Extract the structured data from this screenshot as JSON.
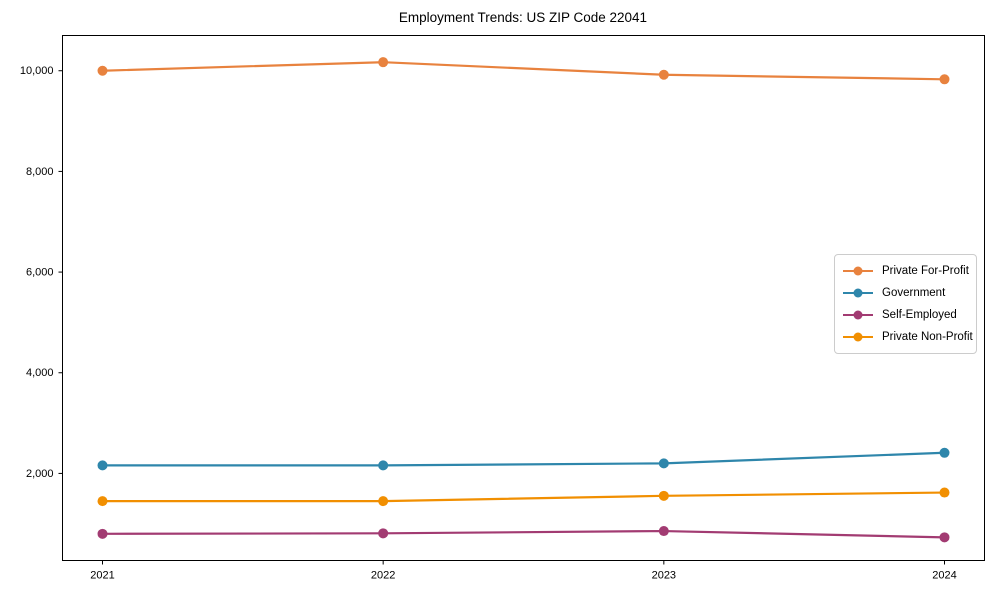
{
  "chart_data": {
    "type": "line",
    "title": "Employment Trends: US ZIP Code 22041",
    "xlabel": "",
    "ylabel": "",
    "categories": [
      "2021",
      "2022",
      "2023",
      "2024"
    ],
    "series": [
      {
        "name": "Private For-Profit",
        "color": "#E8823E",
        "values": [
          10000,
          10170,
          9920,
          9830
        ]
      },
      {
        "name": "Government",
        "color": "#2E86AB",
        "values": [
          2160,
          2160,
          2200,
          2410
        ]
      },
      {
        "name": "Self-Employed",
        "color": "#A23B72",
        "values": [
          800,
          810,
          855,
          730
        ]
      },
      {
        "name": "Private Non-Profit",
        "color": "#F18F01",
        "values": [
          1450,
          1450,
          1555,
          1620
        ]
      }
    ],
    "yticks": [
      2000,
      4000,
      6000,
      8000,
      10000
    ],
    "ytick_labels": [
      "2,000",
      "4,000",
      "6,000",
      "8,000",
      "10,000"
    ],
    "ylim": [
      270,
      10700
    ],
    "grid": false,
    "marker": "circle",
    "legend_position": "center-right",
    "axis_color": "#000000",
    "background_color": "#ffffff"
  }
}
